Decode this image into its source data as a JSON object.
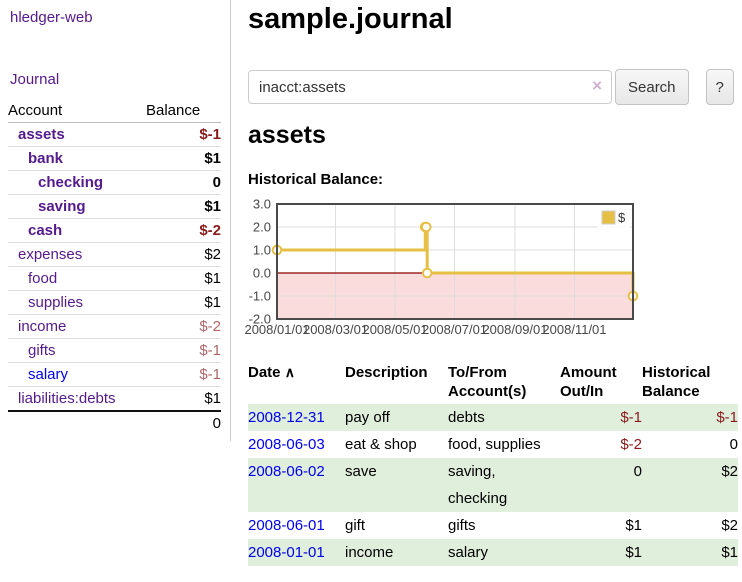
{
  "colors": {
    "visited_link": "#551a8b",
    "link": "#0000ee",
    "negative": "#8b1a1a",
    "negative_soft": "#b06767",
    "row_alt_green": "#e0eedc",
    "chart_line_gold": "#e6bf45",
    "chart_negative_fill": "#fadcdc",
    "chart_zero_line": "#8b0000"
  },
  "sidebar": {
    "brand": "hledger-web",
    "journal_label": "Journal",
    "accounts_table": {
      "header_account": "Account",
      "header_balance": "Balance",
      "rows": [
        {
          "name": "assets",
          "balance": "$-1",
          "indent": 1,
          "bold": true,
          "link": "visited",
          "balance_style": "negative"
        },
        {
          "name": "bank",
          "balance": "$1",
          "indent": 2,
          "bold": true,
          "link": "visited",
          "balance_style": "plain"
        },
        {
          "name": "checking",
          "balance": "0",
          "indent": 3,
          "bold": true,
          "link": "visited",
          "balance_style": "plain"
        },
        {
          "name": "saving",
          "balance": "$1",
          "indent": 3,
          "bold": true,
          "link": "visited",
          "balance_style": "plain"
        },
        {
          "name": "cash",
          "balance": "$-2",
          "indent": 2,
          "bold": true,
          "link": "visited",
          "balance_style": "negative"
        },
        {
          "name": "expenses",
          "balance": "$2",
          "indent": 1,
          "bold": false,
          "link": "visited",
          "balance_style": "plain"
        },
        {
          "name": "food",
          "balance": "$1",
          "indent": 2,
          "bold": false,
          "link": "visited",
          "balance_style": "plain"
        },
        {
          "name": "supplies",
          "balance": "$1",
          "indent": 2,
          "bold": false,
          "link": "visited",
          "balance_style": "plain"
        },
        {
          "name": "income",
          "balance": "$-2",
          "indent": 1,
          "bold": false,
          "link": "visited",
          "balance_style": "negative_soft"
        },
        {
          "name": "gifts",
          "balance": "$-1",
          "indent": 2,
          "bold": false,
          "link": "visited",
          "balance_style": "negative_soft"
        },
        {
          "name": "salary",
          "balance": "$-1",
          "indent": 2,
          "bold": false,
          "link": "unvisited",
          "balance_style": "negative_soft"
        },
        {
          "name": "liabilities:debts",
          "balance": "$1",
          "indent": 1,
          "bold": false,
          "link": "visited",
          "balance_style": "plain"
        }
      ],
      "total": "0"
    }
  },
  "header": {
    "title": "sample.journal"
  },
  "search": {
    "value": "inacct:assets",
    "clear_icon": "×",
    "button_label": "Search",
    "help_label": "?"
  },
  "account_page": {
    "heading": "assets",
    "chart_label": "Historical Balance:"
  },
  "chart_data": {
    "type": "line",
    "step": true,
    "title": "Historical Balance:",
    "series": [
      {
        "name": "$",
        "color": "#e6bf45",
        "points": [
          {
            "x": "2008-01-01",
            "y": 1
          },
          {
            "x": "2008-06-01",
            "y": 2
          },
          {
            "x": "2008-06-02",
            "y": 2
          },
          {
            "x": "2008-06-03",
            "y": 0
          },
          {
            "x": "2008-12-31",
            "y": -1
          }
        ]
      }
    ],
    "x_range": [
      "2008-01-01",
      "2008-12-31"
    ],
    "ylim": [
      -2,
      3
    ],
    "x_ticks": [
      "2008/01/01",
      "2008/03/01",
      "2008/05/01",
      "2008/07/01",
      "2008/09/01",
      "2008/11/01"
    ],
    "y_ticks": [
      3.0,
      2.0,
      1.0,
      0.0,
      -1.0,
      -2.0
    ],
    "y_tick_labels": [
      "3.0",
      "2.0",
      "1.0",
      "0.0",
      "-1.0",
      "-2.0"
    ],
    "grid": true,
    "legend_position": "top-right",
    "legend_label": "$",
    "negative_fill": "#fadcdc",
    "zero_line_color": "#8b0000"
  },
  "register": {
    "sort_icon": "∧",
    "columns": [
      {
        "lines": [
          "Date"
        ],
        "align": "left",
        "sortable": true
      },
      {
        "lines": [
          "Description"
        ],
        "align": "left"
      },
      {
        "lines": [
          "To/From",
          "Account(s)"
        ],
        "align": "left"
      },
      {
        "lines": [
          "Amount",
          "Out/In"
        ],
        "align": "right"
      },
      {
        "lines": [
          "Historical",
          "Balance"
        ],
        "align": "right"
      }
    ],
    "rows": [
      {
        "date": "2008-12-31",
        "description": "pay off",
        "accounts": [
          "debts"
        ],
        "amount": "$-1",
        "amount_negative": true,
        "balance": "$-1",
        "balance_negative": true
      },
      {
        "date": "2008-06-03",
        "description": "eat & shop",
        "accounts": [
          "food, supplies"
        ],
        "amount": "$-2",
        "amount_negative": true,
        "balance": "0",
        "balance_negative": false
      },
      {
        "date": "2008-06-02",
        "description": "save",
        "accounts": [
          "saving,",
          "checking"
        ],
        "amount": "0",
        "amount_negative": false,
        "balance": "$2",
        "balance_negative": false
      },
      {
        "date": "2008-06-01",
        "description": "gift",
        "accounts": [
          "gifts"
        ],
        "amount": "$1",
        "amount_negative": false,
        "balance": "$2",
        "balance_negative": false
      },
      {
        "date": "2008-01-01",
        "description": "income",
        "accounts": [
          "salary"
        ],
        "amount": "$1",
        "amount_negative": false,
        "balance": "$1",
        "balance_negative": false
      }
    ]
  }
}
